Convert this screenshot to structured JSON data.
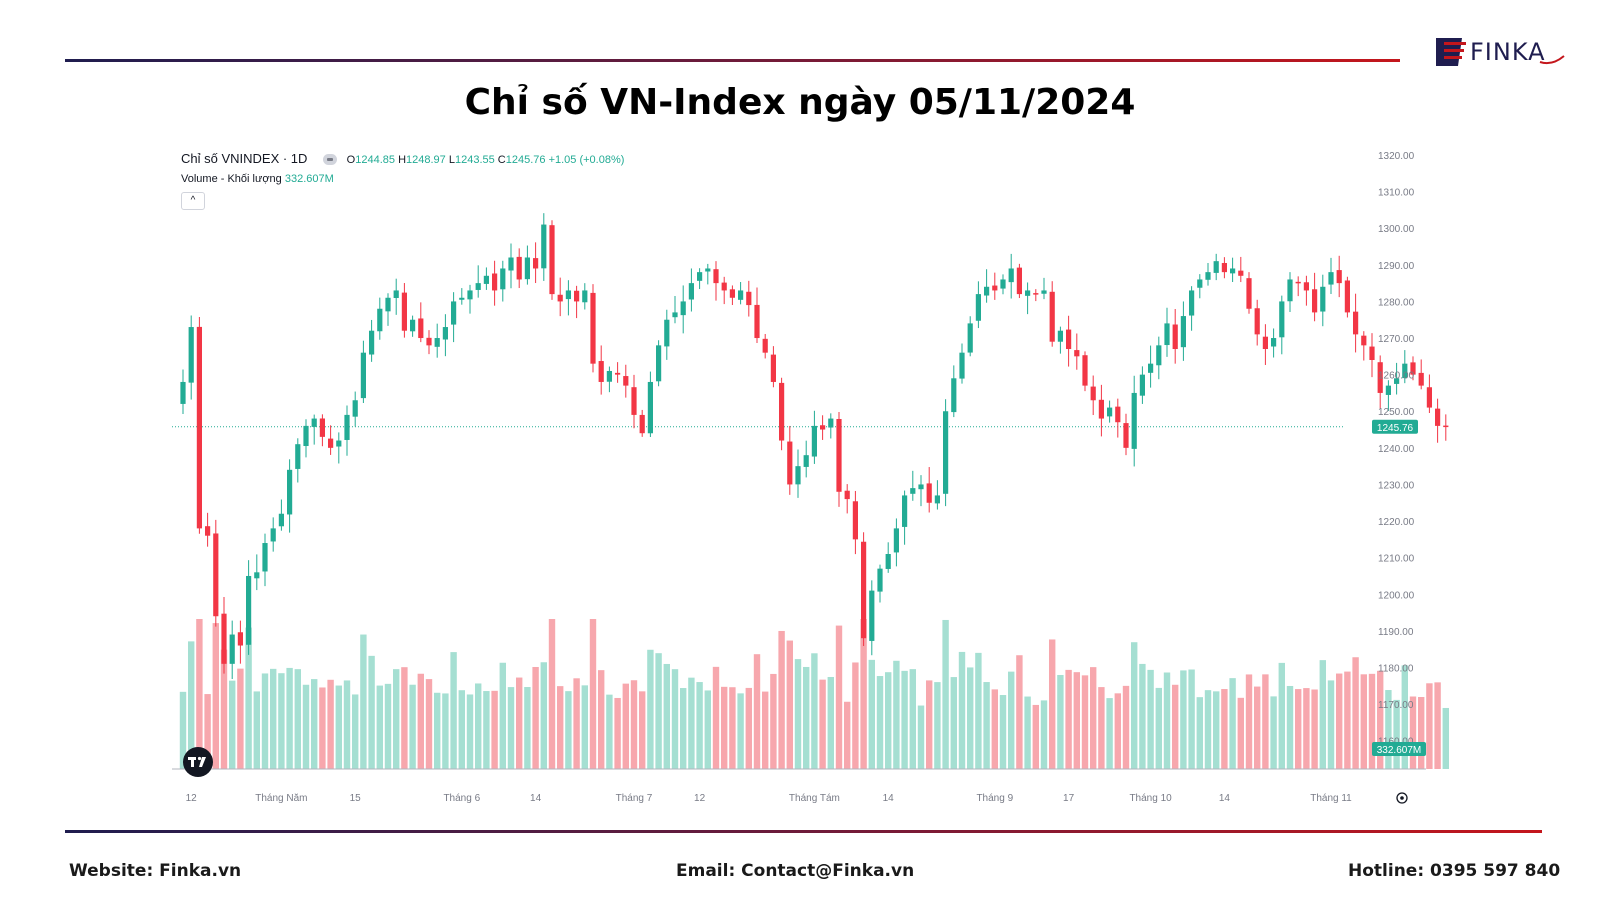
{
  "page": {
    "title": "Chỉ số VN-Index ngày 05/11/2024",
    "logo_text": "FINKA",
    "footer": {
      "website": "Website: Finka.vn",
      "email": "Email: Contact@Finka.vn",
      "hotline": "Hotline: 0395 597 840"
    },
    "colors": {
      "accent_red": "#c4161c",
      "navy": "#1f1d4f",
      "up": "#22ab94",
      "down": "#f23645"
    }
  },
  "legend": {
    "symbol": "Chỉ số VNINDEX · 1D",
    "o_key": "O",
    "o_val": "1244.85",
    "h_key": "H",
    "h_val": "1248.97",
    "l_key": "L",
    "l_val": "1243.55",
    "c_key": "C",
    "c_val": "1245.76",
    "change": "+1.05 (+0.08%)",
    "volume_label": "Volume - Khối lượng",
    "volume_value": "332.607M",
    "collapse_icon": "^"
  },
  "chart_data": {
    "type": "candlestick",
    "symbol": "VNINDEX",
    "interval": "1D",
    "ylim": [
      1155,
      1320
    ],
    "y_ticks": [
      "1320.00",
      "1310.00",
      "1300.00",
      "1290.00",
      "1280.00",
      "1270.00",
      "1260.00",
      "1250.00",
      "1240.00",
      "1230.00",
      "1220.00",
      "1210.00",
      "1200.00",
      "1190.00",
      "1180.00",
      "1170.00",
      "1160.00"
    ],
    "last_price_label": "1245.76",
    "last_price": 1245.76,
    "last_volume_label": "332.607M",
    "x_labels": [
      {
        "label": "12",
        "i": 1
      },
      {
        "label": "Tháng Năm",
        "i": 12
      },
      {
        "label": "15",
        "i": 21
      },
      {
        "label": "Tháng 6",
        "i": 34
      },
      {
        "label": "14",
        "i": 43
      },
      {
        "label": "Tháng 7",
        "i": 55
      },
      {
        "label": "12",
        "i": 63
      },
      {
        "label": "Tháng Tám",
        "i": 77
      },
      {
        "label": "14",
        "i": 86
      },
      {
        "label": "Tháng 9",
        "i": 99
      },
      {
        "label": "17",
        "i": 108
      },
      {
        "label": "Tháng 10",
        "i": 118
      },
      {
        "label": "14",
        "i": 127
      },
      {
        "label": "Tháng 11",
        "i": 140
      }
    ],
    "closes": [
      1258,
      1273,
      1218,
      1216,
      1194,
      1181,
      1189,
      1186,
      1205,
      1206,
      1214,
      1218,
      1222,
      1234,
      1241,
      1246,
      1248,
      1243,
      1240,
      1242,
      1249,
      1253,
      1266,
      1272,
      1278,
      1281,
      1283,
      1272,
      1275,
      1270,
      1268,
      1270,
      1273,
      1280,
      1281,
      1283,
      1285,
      1287,
      1283,
      1289,
      1292,
      1286,
      1292,
      1289,
      1301,
      1282,
      1280,
      1283,
      1280,
      1283,
      1263,
      1258,
      1261,
      1260,
      1257,
      1249,
      1244,
      1258,
      1268,
      1275,
      1277,
      1280,
      1285,
      1288,
      1289,
      1285,
      1283,
      1281,
      1283,
      1279,
      1270,
      1266,
      1258,
      1242,
      1230,
      1235,
      1238,
      1246,
      1245,
      1248,
      1228,
      1226,
      1215,
      1188,
      1201,
      1207,
      1211,
      1218,
      1227,
      1229,
      1230,
      1225,
      1227,
      1250,
      1259,
      1266,
      1274,
      1282,
      1284,
      1283,
      1286,
      1289,
      1282,
      1283,
      1282,
      1283,
      1269,
      1272,
      1267,
      1265,
      1257,
      1253,
      1248,
      1251,
      1247,
      1240,
      1255,
      1260,
      1263,
      1268,
      1274,
      1267,
      1276,
      1283,
      1286,
      1288,
      1291,
      1288,
      1289,
      1287,
      1278,
      1271,
      1267,
      1270,
      1280,
      1286,
      1285,
      1283,
      1277,
      1284,
      1288,
      1285,
      1277,
      1271,
      1268,
      1264,
      1255,
      1257,
      1259,
      1263,
      1260,
      1257,
      1251,
      1246,
      1246
    ]
  }
}
